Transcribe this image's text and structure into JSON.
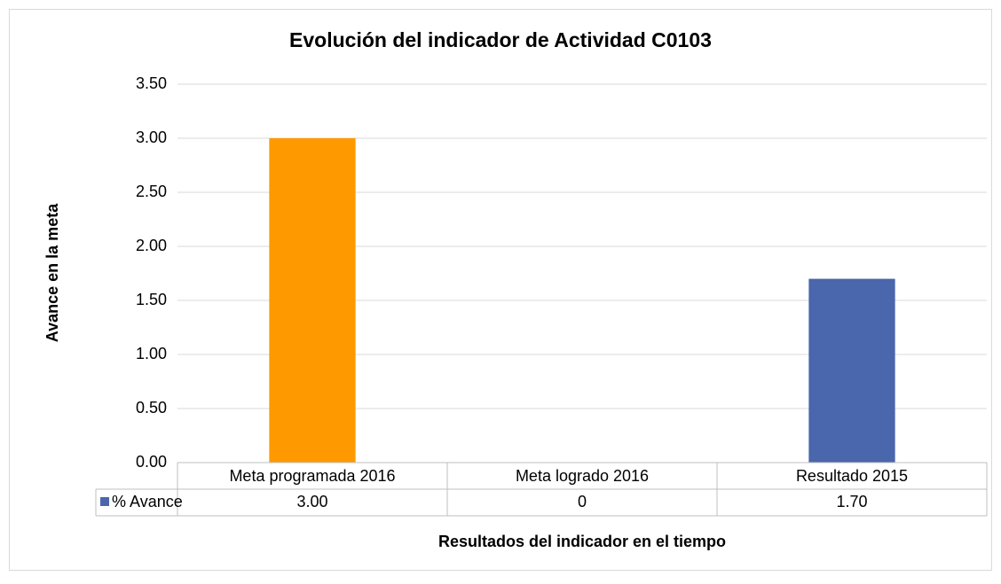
{
  "chart_data": {
    "type": "bar",
    "title": "Evolución del indicador de Actividad C0103",
    "y_label": "Avance en la meta",
    "x_label": "Resultados del indicador en el tiempo",
    "categories": [
      "Meta programada 2016",
      "Meta logrado 2016",
      "Resultado 2015"
    ],
    "series": [
      {
        "name": "% Avance",
        "color": "#4a66ac",
        "point_colors": [
          "#ff9900",
          "#4a66ac",
          "#4a66ac"
        ],
        "values": [
          3,
          0,
          1.7
        ],
        "value_labels": [
          "3.00",
          "0",
          "1.70"
        ]
      }
    ],
    "ylim": [
      0,
      3.5
    ],
    "yticks": [
      {
        "value": 0,
        "label": "0.00"
      },
      {
        "value": 0.5,
        "label": "0.50"
      },
      {
        "value": 1,
        "label": "1.00"
      },
      {
        "value": 1.5,
        "label": "1.50"
      },
      {
        "value": 2,
        "label": "2.00"
      },
      {
        "value": 2.5,
        "label": "2.50"
      },
      {
        "value": 3,
        "label": "3.00"
      },
      {
        "value": 3.5,
        "label": "3.50"
      }
    ],
    "grid": true
  }
}
